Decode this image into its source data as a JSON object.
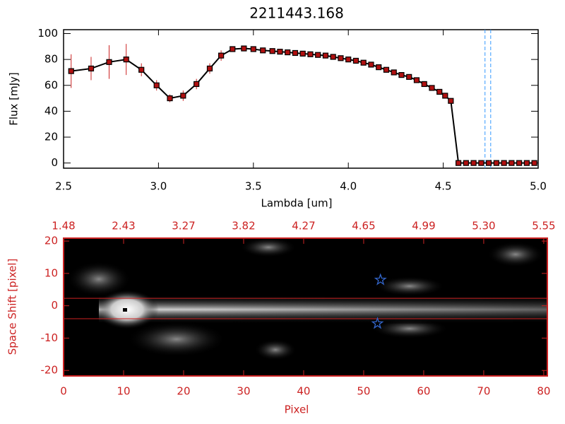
{
  "chart_data": [
    {
      "type": "line",
      "title": "2211443.168",
      "x_label": "Lambda [um]",
      "y_label": "Flux [mJy]",
      "x": [
        2.54,
        2.645,
        2.74,
        2.83,
        2.91,
        2.99,
        3.06,
        3.13,
        3.2,
        3.27,
        3.33,
        3.39,
        3.45,
        3.5,
        3.55,
        3.6,
        3.64,
        3.68,
        3.72,
        3.76,
        3.8,
        3.84,
        3.88,
        3.92,
        3.96,
        4.0,
        4.04,
        4.08,
        4.12,
        4.16,
        4.2,
        4.24,
        4.28,
        4.32,
        4.36,
        4.4,
        4.44,
        4.48,
        4.51,
        4.54,
        4.58,
        4.62,
        4.66,
        4.7,
        4.74,
        4.78,
        4.82,
        4.86,
        4.9,
        4.94,
        4.98
      ],
      "values": [
        71,
        73,
        78,
        80,
        72,
        60,
        50,
        52,
        61,
        73,
        83,
        88,
        88.5,
        88,
        87,
        86.5,
        86,
        85.5,
        85,
        84.5,
        84,
        83.5,
        83,
        82,
        81,
        80,
        79,
        77.5,
        76,
        74,
        72,
        70,
        68,
        66.5,
        64,
        61,
        58,
        55,
        52,
        48,
        0,
        0,
        0,
        0,
        0,
        0,
        0,
        0,
        0,
        0,
        0
      ],
      "errors": [
        13,
        9,
        13,
        12,
        5,
        4,
        3,
        4,
        4,
        4,
        4,
        null,
        null,
        null,
        null,
        null,
        null,
        null,
        null,
        null,
        null,
        null,
        null,
        null,
        null,
        null,
        null,
        null,
        null,
        null,
        null,
        null,
        null,
        null,
        null,
        null,
        null,
        null,
        null,
        null,
        null,
        null,
        null,
        null,
        null,
        null,
        null,
        null,
        null,
        null,
        null
      ],
      "color": "#000000",
      "marker_color": "#b01010",
      "error_color": "#cc2222",
      "xlim": [
        2.5,
        5.0
      ],
      "ylim": [
        -4,
        103
      ],
      "xticks": [
        {
          "value": 2.5,
          "label": "2.5"
        },
        {
          "value": 3.0,
          "label": "3.0"
        },
        {
          "value": 3.5,
          "label": "3.5"
        },
        {
          "value": 4.0,
          "label": "4.0"
        },
        {
          "value": 4.5,
          "label": "4.5"
        },
        {
          "value": 5.0,
          "label": "5.0"
        }
      ],
      "yticks": [
        0,
        20,
        40,
        60,
        80,
        100
      ],
      "vlines": [
        4.72,
        4.75
      ],
      "vline_color": "#3399ff"
    },
    {
      "type": "image",
      "x_label": "Pixel",
      "y_label": "Space Shift [pixel]",
      "xlim": [
        0,
        80.6
      ],
      "ylim": [
        -21.7,
        20.9
      ],
      "xticks": [
        0,
        10,
        20,
        30,
        40,
        50,
        60,
        70,
        80
      ],
      "x2ticks": [
        {
          "value": 0,
          "label": "1.48"
        },
        {
          "value": 10,
          "label": "2.43"
        },
        {
          "value": 20,
          "label": "3.27"
        },
        {
          "value": 30,
          "label": "3.82"
        },
        {
          "value": 40,
          "label": "4.27"
        },
        {
          "value": 50,
          "label": "4.65"
        },
        {
          "value": 60,
          "label": "4.99"
        },
        {
          "value": 70,
          "label": "5.30"
        },
        {
          "value": 80,
          "label": "5.55"
        }
      ],
      "yticks": [
        -20,
        -10,
        0,
        10,
        20
      ],
      "axis_color": "#cc2222",
      "hlines": [
        2.3,
        -4.0
      ],
      "markers": {
        "x": [
          52.8,
          52.3
        ],
        "y": [
          8,
          -5.5
        ],
        "color": "#3366cc"
      }
    }
  ]
}
